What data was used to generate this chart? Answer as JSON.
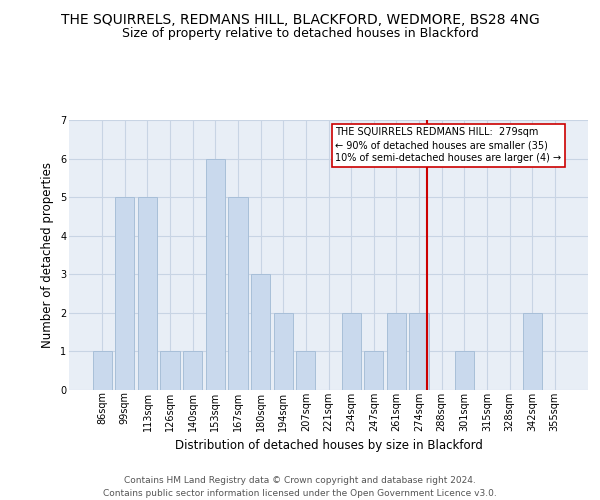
{
  "title": "THE SQUIRRELS, REDMANS HILL, BLACKFORD, WEDMORE, BS28 4NG",
  "subtitle": "Size of property relative to detached houses in Blackford",
  "xlabel": "Distribution of detached houses by size in Blackford",
  "ylabel": "Number of detached properties",
  "categories": [
    "86sqm",
    "99sqm",
    "113sqm",
    "126sqm",
    "140sqm",
    "153sqm",
    "167sqm",
    "180sqm",
    "194sqm",
    "207sqm",
    "221sqm",
    "234sqm",
    "247sqm",
    "261sqm",
    "274sqm",
    "288sqm",
    "301sqm",
    "315sqm",
    "328sqm",
    "342sqm",
    "355sqm"
  ],
  "values": [
    1,
    5,
    5,
    1,
    1,
    6,
    5,
    3,
    2,
    1,
    0,
    2,
    1,
    2,
    2,
    0,
    1,
    0,
    0,
    2,
    0
  ],
  "bar_color": "#c9d9ed",
  "bar_edge_color": "#a8bfd8",
  "grid_color": "#c8d4e4",
  "background_color": "#e8eef6",
  "annotation_line_color": "#cc0000",
  "annotation_text": "THE SQUIRRELS REDMANS HILL:  279sqm\n← 90% of detached houses are smaller (35)\n10% of semi-detached houses are larger (4) →",
  "annotation_box_edge_color": "#cc0000",
  "ylim": [
    0,
    7
  ],
  "yticks": [
    0,
    1,
    2,
    3,
    4,
    5,
    6,
    7
  ],
  "footer_line1": "Contains HM Land Registry data © Crown copyright and database right 2024.",
  "footer_line2": "Contains public sector information licensed under the Open Government Licence v3.0.",
  "title_fontsize": 10,
  "subtitle_fontsize": 9,
  "tick_fontsize": 7,
  "ylabel_fontsize": 8.5,
  "xlabel_fontsize": 8.5,
  "annotation_fontsize": 7,
  "footer_fontsize": 6.5
}
